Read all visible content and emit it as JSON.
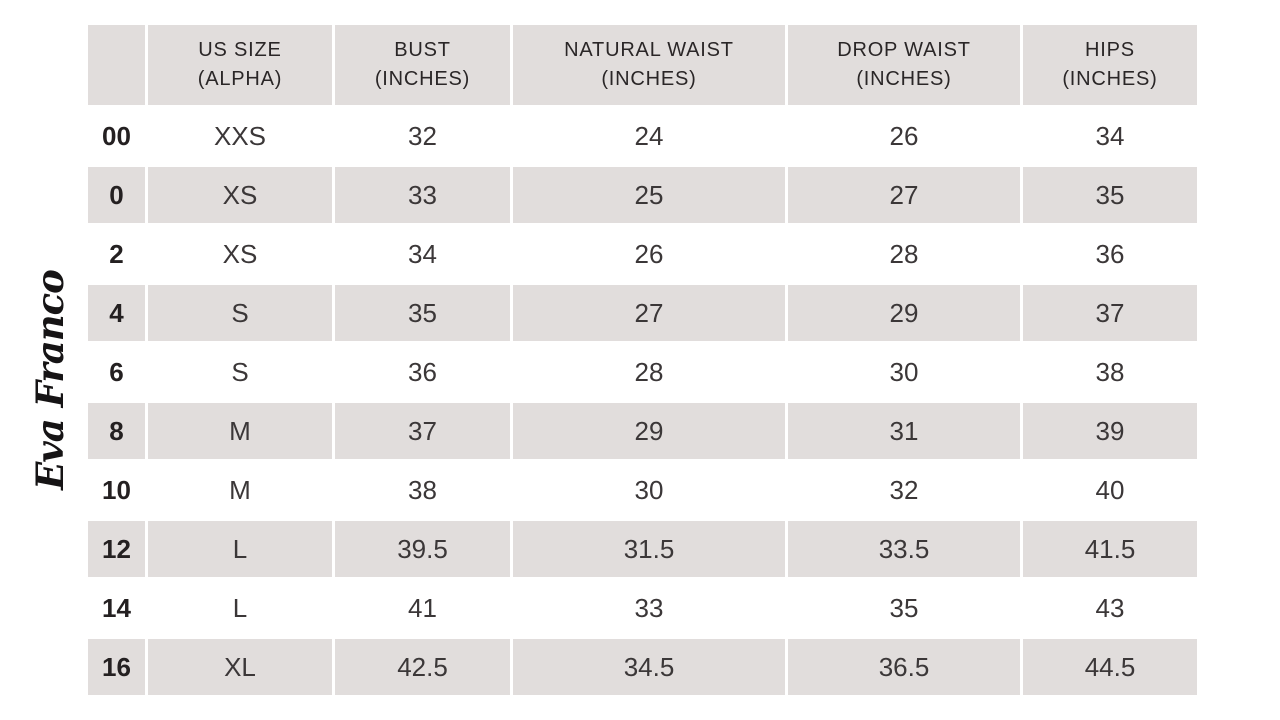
{
  "logo": {
    "text": "Eva Franco"
  },
  "colors": {
    "row_shade": "#e1dddc",
    "row_white": "#ffffff",
    "text_dark": "#2a2627",
    "logo_ink": "#161415"
  },
  "chart_data": {
    "type": "table",
    "columns": [
      {
        "line1": "",
        "line2": ""
      },
      {
        "line1": "US SIZE",
        "line2": "(ALPHA)"
      },
      {
        "line1": "BUST",
        "line2": "(INCHES)"
      },
      {
        "line1": "NATURAL WAIST",
        "line2": "(INCHES)"
      },
      {
        "line1": "DROP WAIST",
        "line2": "(INCHES)"
      },
      {
        "line1": "HIPS",
        "line2": "(INCHES)"
      }
    ],
    "rows": [
      {
        "us_size": "00",
        "alpha": "XXS",
        "bust": "32",
        "natural_waist": "24",
        "drop_waist": "26",
        "hips": "34"
      },
      {
        "us_size": "0",
        "alpha": "XS",
        "bust": "33",
        "natural_waist": "25",
        "drop_waist": "27",
        "hips": "35"
      },
      {
        "us_size": "2",
        "alpha": "XS",
        "bust": "34",
        "natural_waist": "26",
        "drop_waist": "28",
        "hips": "36"
      },
      {
        "us_size": "4",
        "alpha": "S",
        "bust": "35",
        "natural_waist": "27",
        "drop_waist": "29",
        "hips": "37"
      },
      {
        "us_size": "6",
        "alpha": "S",
        "bust": "36",
        "natural_waist": "28",
        "drop_waist": "30",
        "hips": "38"
      },
      {
        "us_size": "8",
        "alpha": "M",
        "bust": "37",
        "natural_waist": "29",
        "drop_waist": "31",
        "hips": "39"
      },
      {
        "us_size": "10",
        "alpha": "M",
        "bust": "38",
        "natural_waist": "30",
        "drop_waist": "32",
        "hips": "40"
      },
      {
        "us_size": "12",
        "alpha": "L",
        "bust": "39.5",
        "natural_waist": "31.5",
        "drop_waist": "33.5",
        "hips": "41.5"
      },
      {
        "us_size": "14",
        "alpha": "L",
        "bust": "41",
        "natural_waist": "33",
        "drop_waist": "35",
        "hips": "43"
      },
      {
        "us_size": "16",
        "alpha": "XL",
        "bust": "42.5",
        "natural_waist": "34.5",
        "drop_waist": "36.5",
        "hips": "44.5"
      }
    ]
  }
}
